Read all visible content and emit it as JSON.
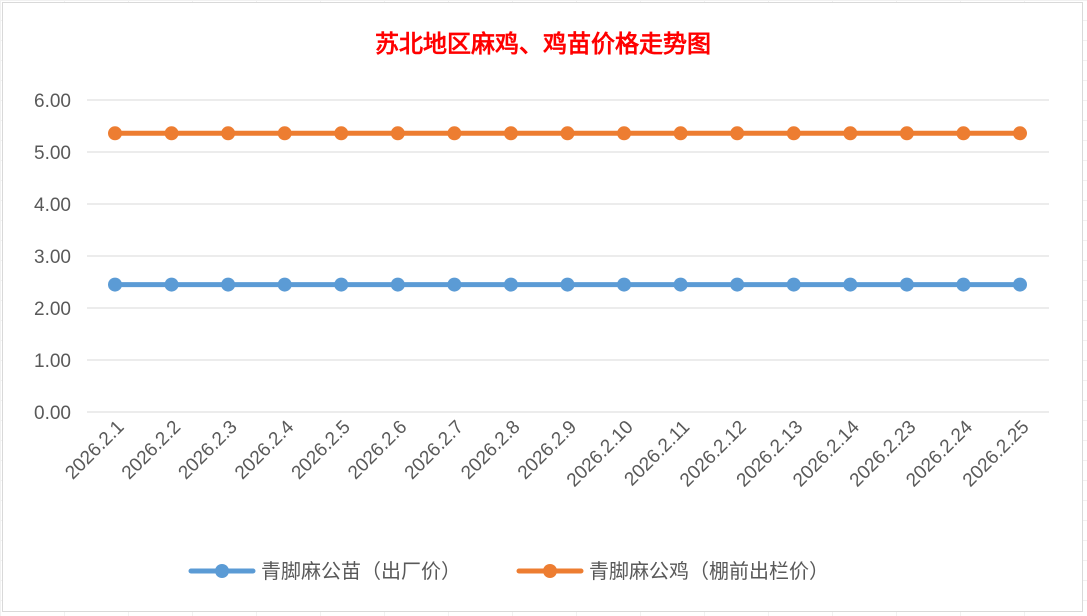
{
  "chart_data": {
    "type": "line",
    "title": "苏北地区麻鸡、鸡苗价格走势图",
    "title_color": "#ff0000",
    "xlabel": "",
    "ylabel": "",
    "categories": [
      "2026.2.1",
      "2026.2.2",
      "2026.2.3",
      "2026.2.4",
      "2026.2.5",
      "2026.2.6",
      "2026.2.7",
      "2026.2.8",
      "2026.2.9",
      "2026.2.10",
      "2026.2.11",
      "2026.2.12",
      "2026.2.13",
      "2026.2.14",
      "2026.2.23",
      "2026.2.24",
      "2026.2.25"
    ],
    "yticks": [
      "0.00",
      "1.00",
      "2.00",
      "3.00",
      "4.00",
      "5.00",
      "6.00"
    ],
    "ylim": [
      0,
      6
    ],
    "grid": true,
    "legend_position": "bottom",
    "series": [
      {
        "name": "青脚麻公苗（出厂价）",
        "color": "#5b9bd5",
        "values": [
          2.45,
          2.45,
          2.45,
          2.45,
          2.45,
          2.45,
          2.45,
          2.45,
          2.45,
          2.45,
          2.45,
          2.45,
          2.45,
          2.45,
          2.45,
          2.45,
          2.45
        ]
      },
      {
        "name": "青脚麻公鸡（棚前出栏价）",
        "color": "#ed7d31",
        "values": [
          5.36,
          5.36,
          5.36,
          5.36,
          5.36,
          5.36,
          5.36,
          5.36,
          5.36,
          5.36,
          5.36,
          5.36,
          5.36,
          5.36,
          5.36,
          5.36,
          5.36
        ]
      }
    ]
  }
}
